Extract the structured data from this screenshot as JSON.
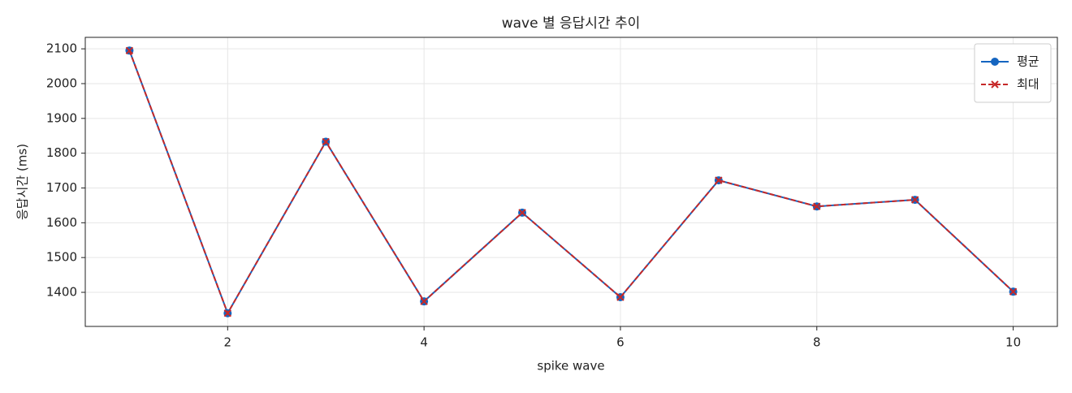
{
  "chart_data": {
    "type": "line",
    "title": "wave 별 응답시간 추이",
    "xlabel": "spike wave",
    "ylabel": "응답시간 (ms)",
    "x": [
      1,
      2,
      3,
      4,
      5,
      6,
      7,
      8,
      9,
      10
    ],
    "series": [
      {
        "name": "평균",
        "color": "#1565c0",
        "marker": "o",
        "linestyle": "solid",
        "values": [
          2095,
          1340,
          1833,
          1374,
          1629,
          1386,
          1722,
          1647,
          1666,
          1402
        ]
      },
      {
        "name": "최대",
        "color": "#c62828",
        "marker": "x",
        "linestyle": "dashed",
        "values": [
          2095,
          1340,
          1833,
          1374,
          1629,
          1386,
          1722,
          1647,
          1666,
          1402
        ]
      }
    ],
    "xlim": [
      0.55,
      10.45
    ],
    "ylim": [
      1302,
      2133
    ],
    "xticks": [
      2,
      4,
      6,
      8,
      10
    ],
    "yticks": [
      1400,
      1500,
      1600,
      1700,
      1800,
      1900,
      2000,
      2100
    ],
    "grid": true,
    "legend": "upper right"
  }
}
